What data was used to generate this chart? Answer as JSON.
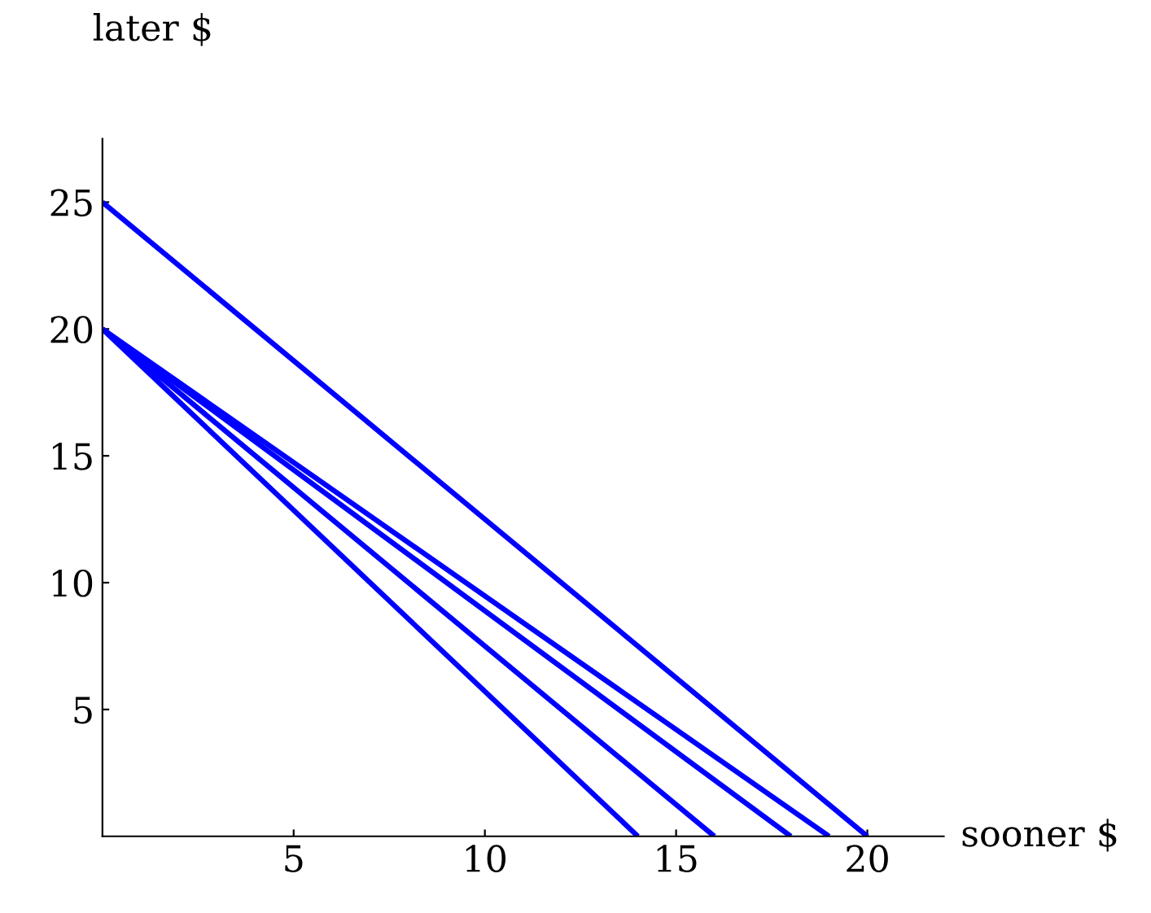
{
  "chart_data": {
    "type": "line",
    "xlabel": "sooner $",
    "ylabel": "later $",
    "series": [
      {
        "color": "#0000ff",
        "x": [
          0,
          20
        ],
        "values": [
          25,
          0
        ]
      },
      {
        "color": "#0000ff",
        "x": [
          0,
          14
        ],
        "values": [
          20,
          0
        ]
      },
      {
        "color": "#0000ff",
        "x": [
          0,
          16
        ],
        "values": [
          20,
          0
        ]
      },
      {
        "color": "#0000ff",
        "x": [
          0,
          18
        ],
        "values": [
          20,
          0
        ]
      },
      {
        "color": "#0000ff",
        "x": [
          0,
          19
        ],
        "values": [
          20,
          0
        ]
      }
    ],
    "xlim": [
      0,
      22
    ],
    "ylim": [
      0,
      27.5
    ],
    "xticks": [
      5,
      10,
      15,
      20
    ],
    "yticks": [
      5,
      10,
      15,
      20,
      25
    ],
    "grid": false,
    "legend": false,
    "marker": "none",
    "line_style": "solid"
  }
}
